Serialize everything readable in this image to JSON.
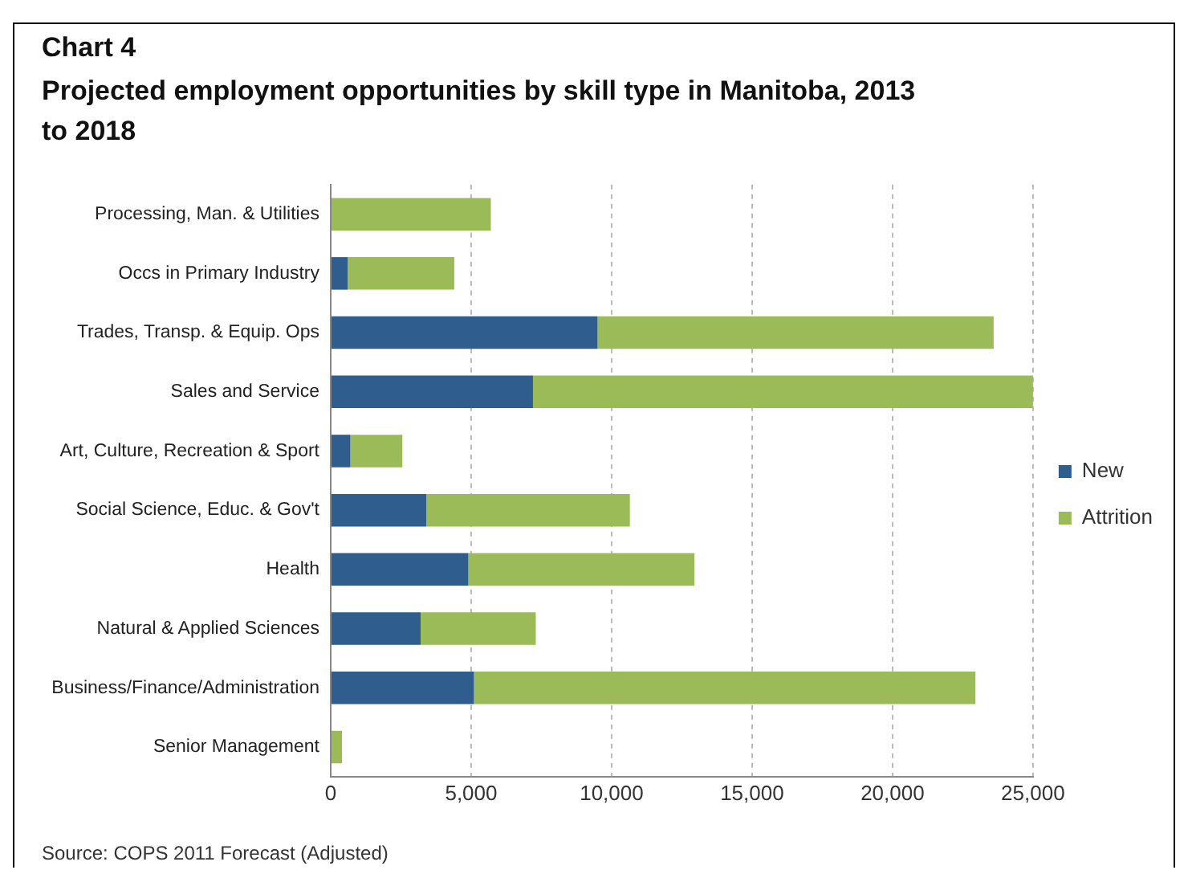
{
  "chart_data": {
    "type": "bar",
    "orientation": "horizontal",
    "stacked": true,
    "title": "Chart 4",
    "subtitle": "Projected employment opportunities by skill type in Manitoba, 2013 to 2018",
    "categories": [
      "Processing, Man. & Utilities",
      "Occs in Primary Industry",
      "Trades, Transp. & Equip. Ops",
      "Sales and Service",
      "Art, Culture, Recreation & Sport",
      "Social Science, Educ. & Gov't",
      "Health",
      "Natural & Applied Sciences",
      "Business/Finance/Administration",
      "Senior Management"
    ],
    "series": [
      {
        "name": "New",
        "color": "#2f5d8e",
        "values": [
          0,
          600,
          9500,
          7200,
          700,
          3400,
          4900,
          3200,
          5100,
          0
        ]
      },
      {
        "name": "Attrition",
        "color": "#9bbb59",
        "values": [
          5700,
          3800,
          14100,
          17900,
          1850,
          7250,
          8050,
          4100,
          17850,
          400
        ]
      }
    ],
    "xlim": [
      0,
      25000
    ],
    "xticks": [
      0,
      {
        "value": 5000,
        "label": "5,000"
      },
      {
        "value": 10000,
        "label": "10,000"
      },
      {
        "value": 15000,
        "label": "15,000"
      },
      {
        "value": 20000,
        "label": "20,000"
      },
      {
        "value": 25000,
        "label": "25,000"
      }
    ],
    "grid": "x",
    "legend": "right",
    "annotations": [
      "Source: COPS 2011 Forecast (Adjusted)"
    ]
  }
}
